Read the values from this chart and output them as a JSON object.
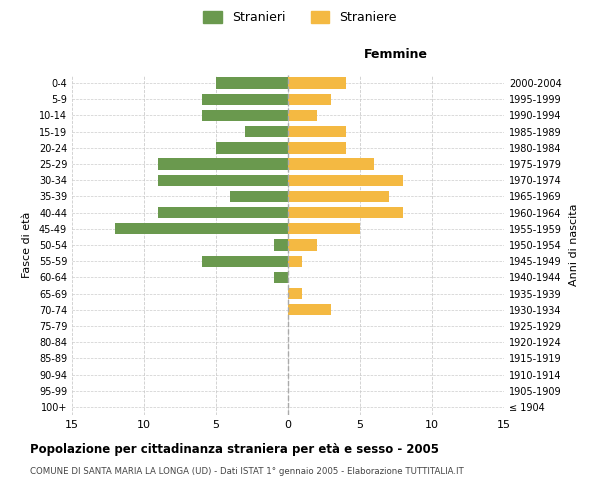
{
  "age_groups": [
    "100+",
    "95-99",
    "90-94",
    "85-89",
    "80-84",
    "75-79",
    "70-74",
    "65-69",
    "60-64",
    "55-59",
    "50-54",
    "45-49",
    "40-44",
    "35-39",
    "30-34",
    "25-29",
    "20-24",
    "15-19",
    "10-14",
    "5-9",
    "0-4"
  ],
  "birth_years": [
    "≤ 1904",
    "1905-1909",
    "1910-1914",
    "1915-1919",
    "1920-1924",
    "1925-1929",
    "1930-1934",
    "1935-1939",
    "1940-1944",
    "1945-1949",
    "1950-1954",
    "1955-1959",
    "1960-1964",
    "1965-1969",
    "1970-1974",
    "1975-1979",
    "1980-1984",
    "1985-1989",
    "1990-1994",
    "1995-1999",
    "2000-2004"
  ],
  "males": [
    0,
    0,
    0,
    0,
    0,
    0,
    0,
    0,
    1,
    6,
    1,
    12,
    9,
    4,
    9,
    9,
    5,
    3,
    6,
    6,
    5
  ],
  "females": [
    0,
    0,
    0,
    0,
    0,
    0,
    3,
    1,
    0,
    1,
    2,
    5,
    8,
    7,
    8,
    6,
    4,
    4,
    2,
    3,
    4
  ],
  "male_color": "#6a994e",
  "female_color": "#f4b942",
  "background_color": "#ffffff",
  "grid_color": "#cccccc",
  "title": "Popolazione per cittadinanza straniera per età e sesso - 2005",
  "subtitle": "COMUNE DI SANTA MARIA LA LONGA (UD) - Dati ISTAT 1° gennaio 2005 - Elaborazione TUTTITALIA.IT",
  "ylabel_left": "Fasce di età",
  "ylabel_right": "Anni di nascita",
  "xlabel_right": "Femmine",
  "legend_male": "Stranieri",
  "legend_female": "Straniere",
  "xlim": 15
}
